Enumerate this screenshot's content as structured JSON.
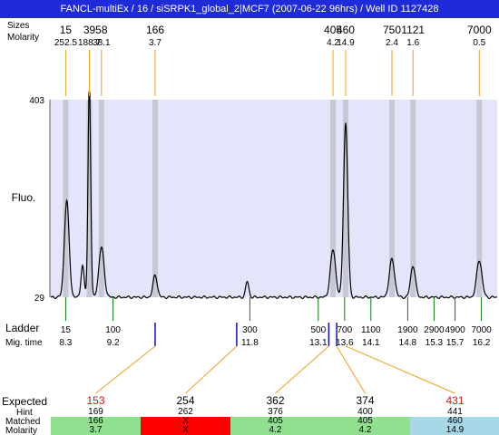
{
  "title": "FANCL-multiEx / 16 / siSRPK1_global_2|MCF7 (2007-06-22 96hrs) / Well ID 1127428",
  "labels": {
    "sizes_row": "Sizes",
    "molarity_row": "Molarity",
    "fluo_axis": "Fluo.",
    "ladder_row": "Ladder",
    "mig_time_row": "Mig. time",
    "expected_row": "Expected",
    "hint_row": "Hint",
    "matched_row": "Matched",
    "molarity_bottom_row": "Molarity"
  },
  "colors": {
    "title_bg": "#1f2ad8",
    "plot_bg": "#e4e4fa",
    "peak_band": "#c8c8d4",
    "trace": "#000000",
    "callout_line": "#f0a020",
    "ladder_tick": "#0a7a0a",
    "marker_tick": "#1010c0",
    "expected_red": "#e01010",
    "match_green": "#90e090",
    "match_red": "#ff0000",
    "match_blue": "#a8d8e8"
  },
  "chart_data": {
    "type": "line",
    "title": "FANCL-multiEx / 16 / siSRPK1_global_2|MCF7 (2007-06-22 96hrs) / Well ID 1127428",
    "xlabel": "",
    "ylabel": "Fluo.",
    "yaxis_ticks": [
      29,
      403
    ],
    "ylim": [
      29,
      403
    ],
    "xlim": [
      8.0,
      16.5
    ],
    "grid": false,
    "trace": {
      "baseline": 29,
      "peaks": [
        {
          "t": 8.32,
          "height": 183,
          "width": 0.045
        },
        {
          "t": 8.62,
          "height": 60,
          "width": 0.03
        },
        {
          "t": 8.75,
          "height": 410,
          "width": 0.025
        },
        {
          "t": 8.98,
          "height": 95,
          "width": 0.05
        },
        {
          "t": 10.0,
          "height": 42,
          "width": 0.04
        },
        {
          "t": 11.75,
          "height": 30,
          "width": 0.03
        },
        {
          "t": 13.38,
          "height": 90,
          "width": 0.05
        },
        {
          "t": 13.62,
          "height": 330,
          "width": 0.04
        },
        {
          "t": 14.5,
          "height": 72,
          "width": 0.05
        },
        {
          "t": 14.9,
          "height": 60,
          "width": 0.045
        },
        {
          "t": 16.16,
          "height": 70,
          "width": 0.05
        }
      ]
    },
    "peak_markers": [
      {
        "size": "15",
        "molarity": "252.5",
        "t": 8.3
      },
      {
        "size": "39",
        "molarity": "188.7",
        "t": 8.75
      },
      {
        "size": "58",
        "molarity": "38.1",
        "t": 8.98
      },
      {
        "size": "166",
        "molarity": "3.7",
        "t": 10.0
      },
      {
        "size": "405",
        "molarity": "4.2",
        "t": 13.38
      },
      {
        "size": "460",
        "molarity": "14.9",
        "t": 13.62
      },
      {
        "size": "750",
        "molarity": "2.4",
        "t": 14.5
      },
      {
        "size": "1121",
        "molarity": "1.6",
        "t": 14.9
      },
      {
        "size": "7000",
        "molarity": "0.5",
        "t": 16.16
      }
    ],
    "ladder": [
      {
        "size": "15",
        "mig_time": "8.3"
      },
      {
        "size": "100",
        "mig_time": "9.2"
      },
      {
        "size": "300",
        "mig_time": "11.8"
      },
      {
        "size": "500",
        "mig_time": "13.1"
      },
      {
        "size": "700",
        "mig_time": "13.6"
      },
      {
        "size": "1100",
        "mig_time": "14.1"
      },
      {
        "size": "1900",
        "mig_time": "14.8"
      },
      {
        "size": "2900",
        "mig_time": "15.3"
      },
      {
        "size": "4900",
        "mig_time": "15.7"
      },
      {
        "size": "7000",
        "mig_time": "16.2"
      }
    ],
    "expected_markers_t": [
      10.0,
      11.55,
      13.3,
      13.45
    ],
    "expected": [
      {
        "expected": "153",
        "hint": "169",
        "matched": "166",
        "molarity": "3.7",
        "status": "ok",
        "red_label": true,
        "peak_t": 10.0
      },
      {
        "expected": "254",
        "hint": "262",
        "matched": "X",
        "molarity": "X",
        "status": "missing",
        "red_label": false,
        "peak_t": 11.55
      },
      {
        "expected": "362",
        "hint": "376",
        "matched": "405",
        "molarity": "4.2",
        "status": "ok",
        "red_label": false,
        "peak_t": 13.3
      },
      {
        "expected": "374",
        "hint": "400",
        "matched": "405",
        "molarity": "4.2",
        "status": "ok",
        "red_label": false,
        "peak_t": 13.45
      },
      {
        "expected": "431",
        "hint": "441",
        "matched": "460",
        "molarity": "14.9",
        "status": "other",
        "red_label": true,
        "peak_t": 13.62
      }
    ]
  }
}
